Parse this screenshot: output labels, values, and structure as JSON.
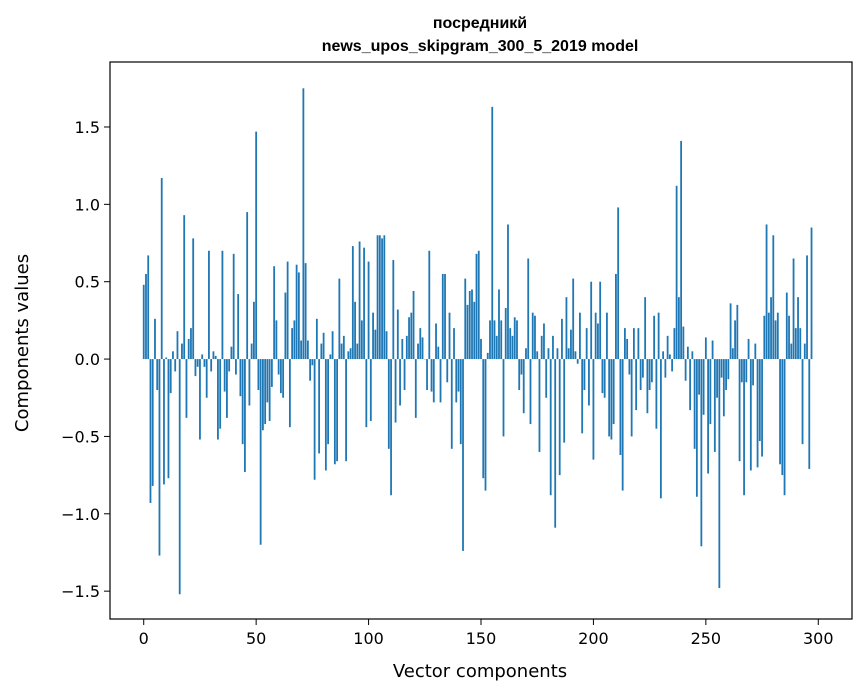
{
  "chart_data": {
    "type": "bar",
    "title_line1": "посредникй",
    "title_line2": "news_upos_skipgram_300_5_2019 model",
    "xlabel": "Vector components",
    "ylabel": "Components values",
    "xlim": [
      -15,
      315
    ],
    "ylim": [
      -1.68,
      1.92
    ],
    "xticks": [
      0,
      50,
      100,
      150,
      200,
      250,
      300
    ],
    "xtick_labels": [
      "0",
      "50",
      "100",
      "150",
      "200",
      "250",
      "300"
    ],
    "yticks": [
      -1.5,
      -1.0,
      -0.5,
      0.0,
      0.5,
      1.0,
      1.5
    ],
    "ytick_labels": [
      "−1.5",
      "−1.0",
      "−0.5",
      "0.0",
      "0.5",
      "1.0",
      "1.5"
    ],
    "bar_color": "#1f77b4",
    "values": [
      0.48,
      0.55,
      0.67,
      -0.93,
      -0.82,
      0.26,
      -0.2,
      -1.27,
      1.17,
      -0.81,
      0.01,
      -0.77,
      -0.22,
      0.05,
      -0.08,
      0.18,
      -1.52,
      0.1,
      0.93,
      -0.38,
      0.13,
      0.2,
      0.78,
      -0.11,
      -0.05,
      -0.52,
      0.03,
      -0.05,
      -0.25,
      0.7,
      -0.08,
      0.05,
      0.02,
      -0.52,
      -0.45,
      0.7,
      -0.21,
      -0.38,
      -0.08,
      0.08,
      0.68,
      -0.1,
      0.42,
      -0.24,
      -0.55,
      -0.73,
      0.95,
      -0.3,
      0.1,
      0.37,
      1.47,
      -0.2,
      -1.2,
      -0.46,
      -0.42,
      -0.28,
      -0.4,
      -0.18,
      0.6,
      0.25,
      -0.1,
      -0.22,
      -0.25,
      0.43,
      0.63,
      -0.44,
      0.2,
      0.25,
      0.61,
      0.56,
      0.12,
      1.75,
      0.62,
      0.12,
      -0.14,
      -0.04,
      -0.78,
      0.26,
      -0.61,
      0.1,
      0.17,
      -0.72,
      -0.55,
      0.03,
      0.18,
      -0.68,
      -0.66,
      0.52,
      0.1,
      0.15,
      -0.66,
      0.05,
      0.07,
      0.73,
      0.37,
      0.1,
      0.76,
      0.25,
      0.72,
      -0.44,
      0.63,
      -0.4,
      0.3,
      0.19,
      0.8,
      0.8,
      0.78,
      0.8,
      0.18,
      -0.58,
      -0.88,
      0.64,
      -0.41,
      0.32,
      -0.3,
      0.13,
      -0.2,
      0.15,
      0.27,
      0.3,
      0.44,
      -0.38,
      0.1,
      0.2,
      0.14,
      0.0,
      -0.2,
      0.7,
      -0.21,
      -0.28,
      0.23,
      0.08,
      -0.28,
      0.55,
      0.55,
      -0.15,
      0.3,
      -0.58,
      0.2,
      -0.28,
      -0.21,
      -0.55,
      -1.24,
      0.52,
      0.35,
      0.44,
      0.45,
      0.37,
      0.68,
      0.7,
      0.13,
      -0.77,
      -0.85,
      0.04,
      0.25,
      1.63,
      0.25,
      0.15,
      0.45,
      0.25,
      -0.5,
      0.33,
      0.87,
      0.2,
      0.15,
      0.27,
      0.25,
      -0.2,
      -0.1,
      -0.35,
      0.07,
      0.65,
      -0.42,
      0.3,
      0.28,
      0.05,
      -0.6,
      0.15,
      0.23,
      -0.25,
      0.07,
      -0.88,
      0.15,
      -1.09,
      0.07,
      -0.75,
      0.26,
      -0.54,
      0.4,
      0.07,
      0.19,
      0.52,
      0.05,
      -0.03,
      0.3,
      -0.48,
      -0.2,
      0.2,
      -0.3,
      0.5,
      -0.65,
      0.3,
      0.23,
      0.5,
      -0.22,
      -0.25,
      0.3,
      -0.5,
      -0.52,
      -0.42,
      0.55,
      0.98,
      -0.62,
      -0.85,
      0.2,
      0.13,
      -0.1,
      -0.5,
      0.2,
      -0.33,
      0.2,
      -0.2,
      -0.12,
      0.4,
      -0.35,
      -0.2,
      -0.15,
      0.28,
      -0.45,
      0.3,
      -0.9,
      0.05,
      -0.12,
      0.15,
      0.03,
      -0.08,
      0.2,
      1.12,
      0.4,
      1.41,
      0.21,
      -0.14,
      0.08,
      -0.33,
      0.05,
      -0.58,
      -0.89,
      -0.23,
      -1.21,
      -0.36,
      0.14,
      -0.74,
      -0.42,
      0.12,
      -0.6,
      -0.25,
      -1.48,
      -0.12,
      -0.37,
      -0.2,
      -0.13,
      0.36,
      0.07,
      0.25,
      0.35,
      -0.66,
      -0.15,
      -0.88,
      -0.15,
      0.13,
      -0.72,
      -0.17,
      0.1,
      -0.7,
      -0.53,
      -0.63,
      0.28,
      0.87,
      0.3,
      0.4,
      0.8,
      0.25,
      0.3,
      -0.68,
      -0.75,
      -0.88,
      0.43,
      0.28,
      0.1,
      0.65,
      0.2,
      0.4,
      0.2,
      -0.55,
      0.1,
      0.67,
      -0.71,
      0.85
    ]
  }
}
